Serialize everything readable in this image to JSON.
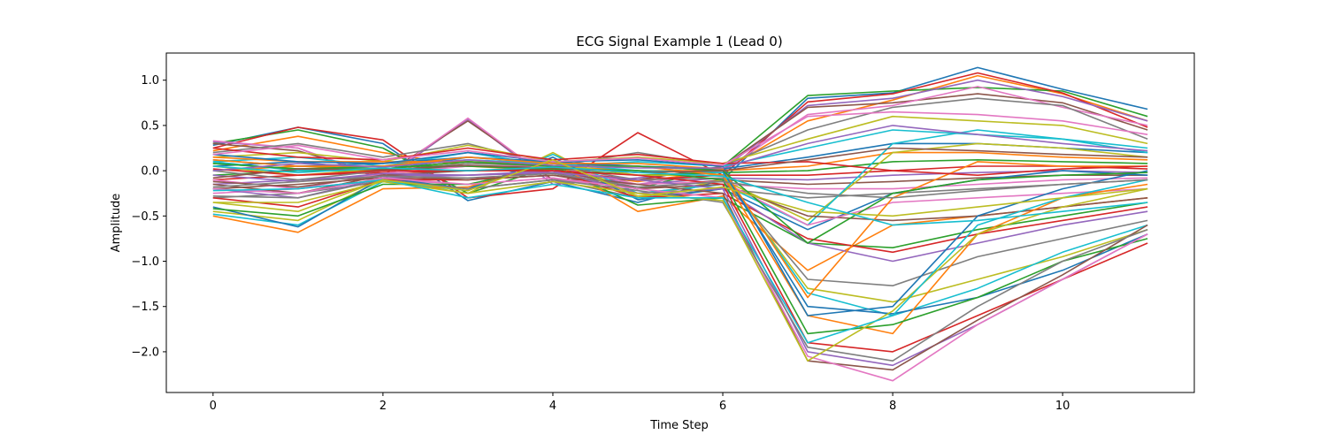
{
  "chart_data": {
    "type": "line",
    "title": "ECG Signal Example 1 (Lead 0)",
    "xlabel": "Time Step",
    "ylabel": "Amplitude",
    "xlim": [
      -0.55,
      11.55
    ],
    "ylim": [
      -2.45,
      1.3
    ],
    "xticks": [
      0,
      2,
      4,
      6,
      8,
      10
    ],
    "xtick_labels": [
      "0",
      "2",
      "4",
      "6",
      "8",
      "10"
    ],
    "yticks": [
      1.0,
      0.5,
      0.0,
      -0.5,
      -1.0,
      -1.5,
      -2.0
    ],
    "ytick_labels": [
      "1.0",
      "0.5",
      "0.0",
      "−0.5",
      "−1.0",
      "−1.5",
      "−2.0"
    ],
    "grid": false,
    "x": [
      0,
      1,
      2,
      3,
      4,
      5,
      6,
      7,
      8,
      9,
      10,
      11
    ],
    "palette": [
      "#1f77b4",
      "#ff7f0e",
      "#2ca02c",
      "#d62728",
      "#9467bd",
      "#8c564b",
      "#e377c2",
      "#7f7f7f",
      "#bcbd22",
      "#17becf"
    ],
    "series": [
      {
        "values": [
          0.28,
          0.48,
          0.3,
          -0.33,
          -0.12,
          -0.35,
          -0.1,
          0.8,
          0.86,
          1.14,
          0.9,
          0.68
        ]
      },
      {
        "values": [
          0.22,
          0.38,
          0.2,
          0.05,
          0.0,
          -0.12,
          0.0,
          0.55,
          0.78,
          1.05,
          0.85,
          0.55
        ]
      },
      {
        "values": [
          0.3,
          0.45,
          0.25,
          -0.25,
          0.05,
          -0.2,
          0.05,
          0.83,
          0.88,
          0.92,
          0.88,
          0.6
        ]
      },
      {
        "values": [
          0.25,
          0.48,
          0.34,
          -0.3,
          -0.2,
          0.42,
          -0.05,
          0.76,
          0.85,
          1.08,
          0.86,
          0.48
        ]
      },
      {
        "values": [
          0.32,
          0.25,
          -0.1,
          0.57,
          -0.15,
          -0.08,
          0.02,
          0.72,
          0.8,
          1.0,
          0.82,
          0.55
        ]
      },
      {
        "values": [
          0.3,
          0.22,
          -0.05,
          0.55,
          -0.1,
          -0.1,
          0.05,
          0.7,
          0.75,
          0.85,
          0.75,
          0.45
        ]
      },
      {
        "values": [
          0.33,
          0.25,
          -0.08,
          0.58,
          -0.12,
          -0.15,
          0.0,
          0.62,
          0.72,
          0.93,
          0.7,
          0.5
        ]
      },
      {
        "values": [
          0.2,
          0.3,
          0.15,
          0.3,
          0.05,
          0.2,
          0.05,
          0.45,
          0.7,
          0.8,
          0.72,
          0.35
        ]
      },
      {
        "values": [
          0.15,
          0.2,
          0.1,
          0.28,
          0.1,
          0.15,
          0.08,
          0.35,
          0.6,
          0.55,
          0.5,
          0.3
        ]
      },
      {
        "values": [
          0.1,
          0.15,
          0.05,
          0.2,
          0.05,
          0.1,
          0.05,
          0.25,
          0.45,
          0.4,
          0.35,
          0.25
        ]
      },
      {
        "values": [
          0.05,
          0.1,
          0.0,
          0.15,
          0.08,
          0.05,
          0.02,
          0.15,
          0.3,
          0.3,
          0.25,
          0.2
        ]
      },
      {
        "values": [
          0.0,
          0.05,
          0.02,
          0.1,
          0.05,
          0.0,
          0.0,
          0.05,
          0.2,
          0.2,
          0.15,
          0.12
        ]
      },
      {
        "values": [
          -0.05,
          0.0,
          0.0,
          0.05,
          0.02,
          -0.05,
          -0.02,
          0.0,
          0.1,
          0.12,
          0.1,
          0.08
        ]
      },
      {
        "values": [
          -0.1,
          -0.05,
          -0.02,
          0.0,
          0.0,
          -0.1,
          -0.05,
          -0.05,
          0.0,
          0.05,
          0.05,
          0.02
        ]
      },
      {
        "values": [
          -0.15,
          -0.1,
          -0.05,
          -0.05,
          -0.02,
          -0.15,
          -0.08,
          -0.1,
          -0.05,
          -0.02,
          0.0,
          -0.02
        ]
      },
      {
        "values": [
          -0.2,
          -0.15,
          -0.08,
          -0.1,
          -0.05,
          -0.2,
          -0.1,
          -0.15,
          -0.12,
          -0.08,
          -0.05,
          -0.05
        ]
      },
      {
        "values": [
          -0.25,
          -0.2,
          -0.1,
          -0.15,
          -0.08,
          -0.25,
          -0.15,
          -0.2,
          -0.2,
          -0.15,
          -0.1,
          -0.08
        ]
      },
      {
        "values": [
          -0.3,
          -0.25,
          -0.12,
          -0.2,
          -0.1,
          -0.3,
          -0.2,
          -0.3,
          -0.25,
          -0.2,
          -0.15,
          -0.1
        ]
      },
      {
        "values": [
          -0.45,
          -0.55,
          -0.1,
          -0.25,
          0.2,
          -0.3,
          -0.1,
          -0.55,
          0.2,
          0.3,
          0.25,
          0.15
        ]
      },
      {
        "values": [
          -0.48,
          -0.6,
          -0.12,
          -0.22,
          0.18,
          -0.25,
          -0.15,
          -0.6,
          0.3,
          0.45,
          0.35,
          0.2
        ]
      },
      {
        "values": [
          -0.4,
          -0.62,
          -0.08,
          -0.2,
          0.15,
          -0.32,
          -0.2,
          -0.65,
          -0.25,
          -0.1,
          0.0,
          -0.05
        ]
      },
      {
        "values": [
          -0.5,
          -0.68,
          -0.2,
          -0.18,
          0.1,
          -0.45,
          -0.28,
          -1.1,
          -0.6,
          -0.5,
          -0.4,
          -0.3
        ]
      },
      {
        "values": [
          -0.42,
          -0.5,
          -0.15,
          -0.15,
          0.05,
          -0.38,
          -0.3,
          -0.8,
          -0.85,
          -0.65,
          -0.5,
          -0.35
        ]
      },
      {
        "values": [
          -0.3,
          -0.4,
          -0.1,
          -0.1,
          0.0,
          -0.3,
          -0.25,
          -0.75,
          -0.9,
          -0.7,
          -0.55,
          -0.4
        ]
      },
      {
        "values": [
          -0.2,
          -0.3,
          -0.08,
          -0.05,
          0.0,
          -0.25,
          -0.2,
          -0.8,
          -1.0,
          -0.8,
          -0.6,
          -0.45
        ]
      },
      {
        "values": [
          -0.15,
          -0.25,
          -0.05,
          0.0,
          0.02,
          -0.2,
          -0.15,
          -0.5,
          -0.55,
          -0.5,
          -0.4,
          -0.3
        ]
      },
      {
        "values": [
          -0.1,
          -0.2,
          -0.03,
          0.05,
          0.05,
          -0.15,
          -0.12,
          -0.6,
          -0.35,
          -0.3,
          -0.25,
          -0.2
        ]
      },
      {
        "values": [
          0.0,
          -0.1,
          0.0,
          0.08,
          0.05,
          -0.1,
          -0.08,
          -1.2,
          -1.27,
          -0.95,
          -0.75,
          -0.55
        ]
      },
      {
        "values": [
          0.05,
          -0.05,
          0.02,
          0.1,
          0.08,
          -0.05,
          -0.05,
          -1.3,
          -1.45,
          -1.2,
          -0.95,
          -0.65
        ]
      },
      {
        "values": [
          0.1,
          0.0,
          0.05,
          0.12,
          0.08,
          0.0,
          -0.02,
          -1.35,
          -1.6,
          -1.3,
          -0.9,
          -0.6
        ]
      },
      {
        "values": [
          0.12,
          0.05,
          0.08,
          0.15,
          0.1,
          0.05,
          0.0,
          -1.5,
          -1.58,
          -1.4,
          -1.1,
          -0.7
        ]
      },
      {
        "values": [
          0.15,
          0.1,
          0.1,
          0.1,
          0.05,
          0.05,
          -0.05,
          -1.6,
          -1.8,
          -0.7,
          -0.3,
          -0.15
        ]
      },
      {
        "values": [
          0.08,
          0.02,
          0.05,
          0.05,
          0.02,
          0.0,
          -0.1,
          -1.8,
          -1.7,
          -1.4,
          -1.0,
          -0.75
        ]
      },
      {
        "values": [
          0.02,
          -0.05,
          0.0,
          0.0,
          0.0,
          -0.05,
          -0.15,
          -1.9,
          -2.0,
          -1.6,
          -1.2,
          -0.8
        ]
      },
      {
        "values": [
          -0.05,
          -0.12,
          -0.03,
          -0.05,
          -0.02,
          -0.1,
          -0.2,
          -2.0,
          -2.15,
          -1.7,
          -1.2,
          -0.7
        ]
      },
      {
        "values": [
          -0.12,
          -0.18,
          -0.05,
          -0.1,
          -0.05,
          -0.15,
          -0.25,
          -2.1,
          -2.2,
          -1.65,
          -1.15,
          -0.6
        ]
      },
      {
        "values": [
          -0.2,
          -0.25,
          -0.08,
          -0.15,
          -0.08,
          -0.2,
          -0.3,
          -2.05,
          -2.32,
          -1.7,
          -1.2,
          -0.7
        ]
      },
      {
        "values": [
          -0.28,
          -0.3,
          -0.1,
          -0.2,
          -0.1,
          -0.22,
          -0.35,
          -1.95,
          -2.1,
          -1.5,
          -1.0,
          -0.65
        ]
      },
      {
        "values": [
          -0.35,
          -0.35,
          -0.12,
          -0.25,
          -0.12,
          -0.25,
          -0.33,
          -2.1,
          -1.55,
          -0.7,
          -0.4,
          -0.2
        ]
      },
      {
        "values": [
          -0.22,
          -0.2,
          -0.1,
          -0.3,
          -0.15,
          -0.3,
          -0.3,
          -1.9,
          -1.6,
          -0.6,
          -0.3,
          -0.1
        ]
      },
      {
        "values": [
          0.18,
          0.1,
          0.08,
          0.2,
          0.1,
          0.12,
          0.05,
          -1.6,
          -1.5,
          -0.5,
          -0.2,
          0.0
        ]
      },
      {
        "values": [
          0.12,
          0.05,
          0.05,
          0.15,
          0.08,
          0.08,
          0.02,
          -1.4,
          -0.3,
          0.1,
          0.05,
          0.05
        ]
      },
      {
        "values": [
          0.08,
          0.02,
          0.02,
          0.1,
          0.05,
          0.05,
          0.0,
          -0.8,
          -0.25,
          -0.1,
          -0.05,
          -0.02
        ]
      },
      {
        "values": [
          0.25,
          0.15,
          0.12,
          0.25,
          0.12,
          0.18,
          0.08,
          0.1,
          0.0,
          -0.05,
          0.02,
          0.05
        ]
      },
      {
        "values": [
          0.0,
          0.08,
          0.04,
          0.12,
          0.06,
          0.03,
          0.03,
          0.3,
          0.5,
          0.4,
          0.3,
          0.22
        ]
      },
      {
        "values": [
          -0.08,
          0.02,
          0.01,
          0.06,
          0.03,
          -0.02,
          0.0,
          0.12,
          0.25,
          0.22,
          0.18,
          0.15
        ]
      },
      {
        "values": [
          0.18,
          0.28,
          0.12,
          0.22,
          0.1,
          0.14,
          0.06,
          0.6,
          0.65,
          0.62,
          0.55,
          0.4
        ]
      },
      {
        "values": [
          -0.18,
          -0.12,
          -0.06,
          -0.08,
          -0.03,
          -0.18,
          -0.12,
          -0.25,
          -0.3,
          -0.22,
          -0.15,
          -0.1
        ]
      },
      {
        "values": [
          -0.35,
          -0.45,
          -0.1,
          -0.22,
          0.12,
          -0.28,
          -0.18,
          -0.45,
          -0.5,
          -0.4,
          -0.3,
          -0.2
        ]
      },
      {
        "values": [
          0.05,
          -0.02,
          0.03,
          0.0,
          0.04,
          -0.02,
          -0.06,
          -0.35,
          -0.6,
          -0.55,
          -0.45,
          -0.35
        ]
      }
    ]
  }
}
